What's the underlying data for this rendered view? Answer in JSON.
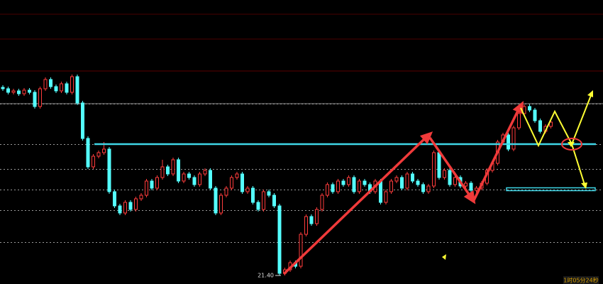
{
  "chart_data": {
    "type": "candlestick",
    "ylim": [
      21.28,
      25.28
    ],
    "grid": true,
    "grid_levels": [
      21.87,
      22.32,
      22.61,
      22.9,
      23.25,
      23.82
    ],
    "up_color": "#ff3c3c",
    "down_color": "#54ffff",
    "open": [
      24.05,
      24.03,
      23.98,
      24.0,
      23.96,
      24.01,
      23.98,
      23.78,
      24.03,
      24.16,
      24.06,
      24.0,
      24.1,
      23.98,
      24.2,
      23.83,
      23.33,
      22.93,
      23.08,
      23.13,
      23.18,
      22.58,
      22.38,
      22.28,
      22.43,
      22.33,
      22.48,
      22.53,
      22.73,
      22.63,
      22.78,
      22.93,
      22.83,
      23.03,
      22.73,
      22.83,
      22.78,
      22.68,
      22.83,
      22.88,
      22.63,
      22.28,
      22.53,
      22.63,
      22.78,
      22.83,
      22.58,
      22.63,
      22.43,
      22.33,
      22.58,
      22.53,
      22.38,
      21.43,
      21.48,
      21.58,
      21.53,
      21.98,
      22.23,
      22.13,
      22.33,
      22.53,
      22.68,
      22.58,
      22.73,
      22.68,
      22.78,
      22.58,
      22.73,
      22.68,
      22.58,
      22.73,
      22.43,
      22.58,
      22.73,
      22.78,
      22.63,
      22.83,
      22.73,
      22.68,
      22.58,
      22.66,
      23.13,
      22.78,
      22.88,
      22.68,
      22.78,
      22.66,
      22.7,
      22.6,
      22.63,
      22.7,
      22.88,
      22.98,
      23.28,
      23.38,
      23.18,
      23.48,
      23.68,
      23.78,
      23.73,
      23.58,
      23.43,
      23.5
    ],
    "high": [
      24.08,
      24.06,
      24.03,
      24.03,
      24.04,
      24.04,
      24.01,
      24.06,
      24.19,
      24.19,
      24.09,
      24.13,
      24.13,
      24.23,
      24.23,
      23.86,
      23.36,
      23.11,
      23.16,
      23.28,
      23.21,
      22.61,
      22.41,
      22.46,
      22.46,
      22.51,
      22.56,
      22.76,
      22.76,
      22.81,
      23.03,
      22.96,
      23.06,
      23.06,
      22.86,
      22.86,
      22.81,
      22.86,
      22.91,
      22.91,
      22.66,
      22.56,
      22.66,
      22.81,
      22.86,
      22.86,
      22.66,
      22.66,
      22.46,
      22.61,
      22.61,
      22.56,
      22.41,
      21.51,
      21.61,
      21.61,
      22.01,
      22.26,
      22.26,
      22.36,
      22.56,
      22.71,
      22.71,
      22.76,
      22.76,
      22.81,
      22.81,
      22.76,
      22.76,
      22.71,
      22.76,
      22.76,
      22.61,
      22.76,
      22.81,
      22.81,
      22.86,
      22.86,
      22.76,
      22.71,
      22.69,
      23.16,
      23.16,
      22.91,
      22.91,
      22.81,
      22.81,
      22.73,
      22.73,
      22.66,
      22.73,
      22.91,
      23.01,
      23.31,
      23.41,
      23.41,
      23.51,
      23.71,
      23.81,
      23.81,
      23.76,
      23.61,
      23.53,
      23.59
    ],
    "low": [
      24.0,
      23.95,
      23.95,
      23.93,
      23.93,
      23.95,
      23.75,
      23.75,
      24.0,
      24.03,
      23.97,
      23.97,
      23.95,
      23.95,
      23.8,
      23.3,
      22.9,
      22.9,
      23.05,
      23.1,
      22.55,
      22.35,
      22.25,
      22.25,
      22.3,
      22.3,
      22.45,
      22.5,
      22.6,
      22.6,
      22.75,
      22.8,
      22.8,
      22.7,
      22.7,
      22.75,
      22.65,
      22.65,
      22.8,
      22.6,
      22.25,
      22.25,
      22.5,
      22.6,
      22.75,
      22.55,
      22.55,
      22.4,
      22.3,
      22.3,
      22.5,
      22.35,
      21.4,
      21.4,
      21.45,
      21.5,
      21.5,
      21.95,
      22.1,
      22.1,
      22.3,
      22.5,
      22.55,
      22.55,
      22.65,
      22.65,
      22.55,
      22.55,
      22.65,
      22.55,
      22.55,
      22.4,
      22.4,
      22.55,
      22.7,
      22.6,
      22.6,
      22.7,
      22.65,
      22.55,
      22.55,
      22.63,
      22.75,
      22.75,
      22.65,
      22.65,
      22.63,
      22.63,
      22.57,
      22.57,
      22.6,
      22.67,
      22.85,
      22.95,
      23.25,
      23.15,
      23.15,
      23.45,
      23.65,
      23.7,
      23.55,
      23.4,
      23.4,
      23.47
    ],
    "close": [
      24.03,
      23.98,
      24.0,
      23.96,
      24.01,
      23.98,
      23.78,
      24.03,
      24.16,
      24.06,
      24.0,
      24.1,
      23.98,
      24.2,
      23.83,
      23.33,
      22.93,
      23.08,
      23.13,
      23.18,
      22.58,
      22.38,
      22.28,
      22.43,
      22.33,
      22.48,
      22.53,
      22.73,
      22.63,
      22.78,
      22.93,
      22.83,
      23.03,
      22.73,
      22.83,
      22.78,
      22.68,
      22.83,
      22.88,
      22.63,
      22.28,
      22.53,
      22.63,
      22.78,
      22.83,
      22.58,
      22.63,
      22.43,
      22.33,
      22.58,
      22.53,
      22.38,
      21.43,
      21.48,
      21.58,
      21.53,
      21.98,
      22.23,
      22.13,
      22.33,
      22.53,
      22.68,
      22.58,
      22.73,
      22.68,
      22.78,
      22.58,
      22.73,
      22.68,
      22.58,
      22.73,
      22.43,
      22.58,
      22.73,
      22.78,
      22.63,
      22.83,
      22.73,
      22.68,
      22.58,
      22.66,
      23.13,
      22.78,
      22.88,
      22.68,
      22.78,
      22.66,
      22.7,
      22.6,
      22.63,
      22.7,
      22.88,
      22.98,
      23.28,
      23.38,
      23.18,
      23.48,
      23.68,
      23.78,
      23.73,
      23.58,
      23.43,
      23.5,
      23.56
    ],
    "low_marker": {
      "value": 21.4,
      "label": "21.40"
    },
    "timer": "1时05分24秒"
  }
}
